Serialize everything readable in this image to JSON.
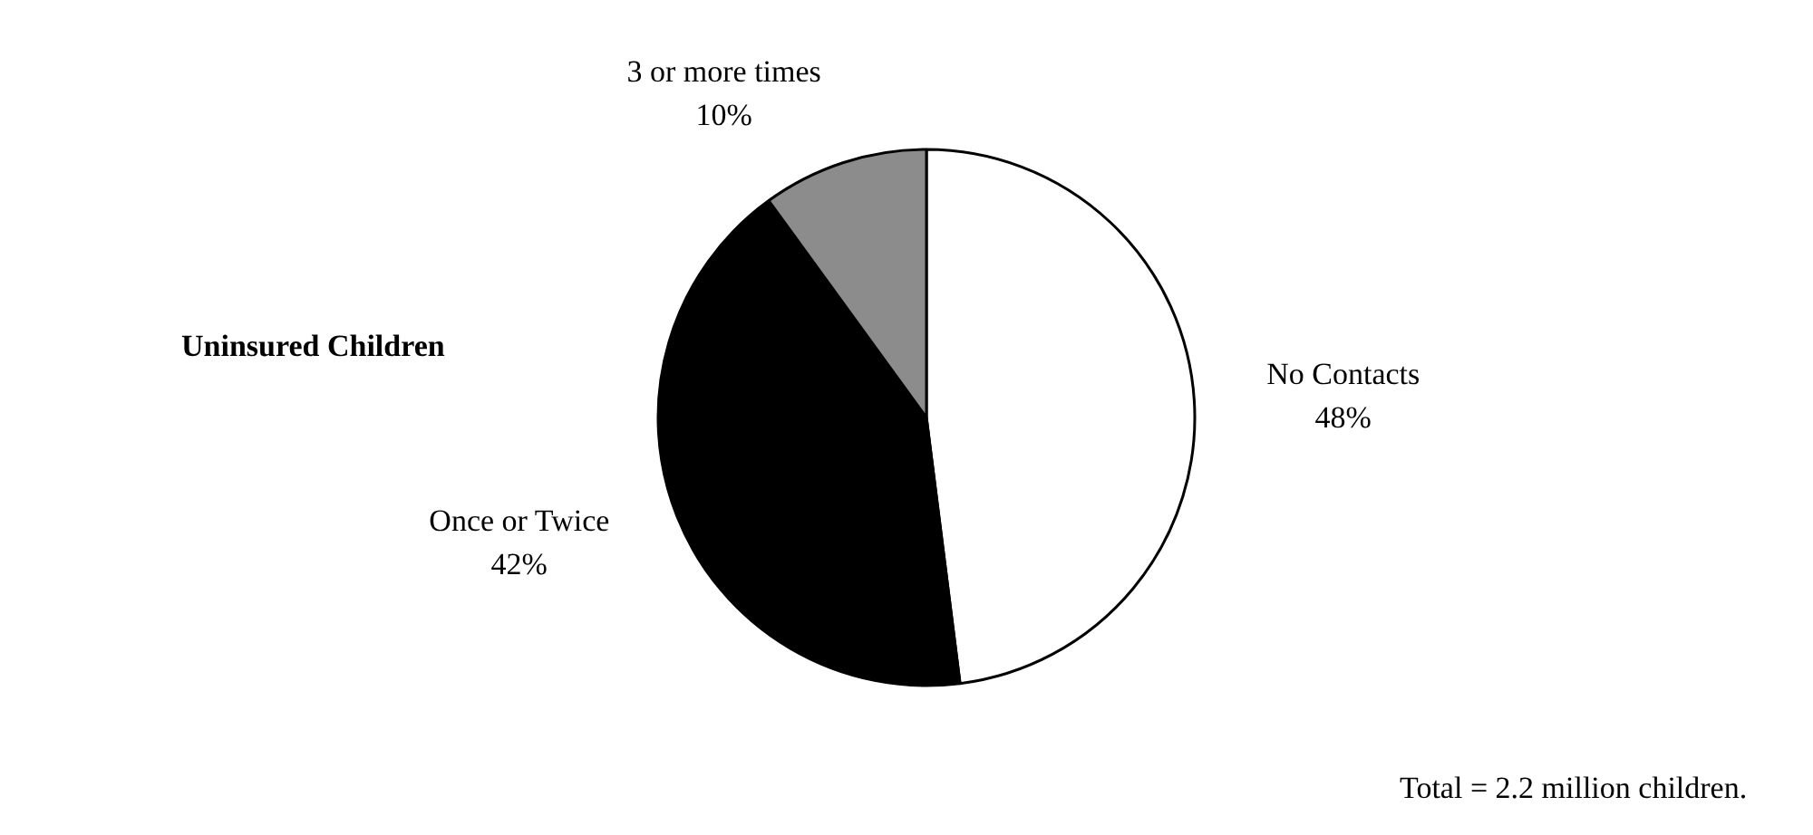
{
  "chart_data": {
    "type": "pie",
    "title": "Uninsured Children",
    "categories": [
      "No Contacts",
      "Once or Twice",
      "3 or more times"
    ],
    "values": [
      48,
      42,
      10
    ],
    "value_labels": [
      "48%",
      "42%",
      "10%"
    ],
    "colors": [
      "#ffffff",
      "#000000",
      "#8c8c8c"
    ],
    "legend": false,
    "annotations": [
      "Total = 2.2 million children."
    ]
  }
}
